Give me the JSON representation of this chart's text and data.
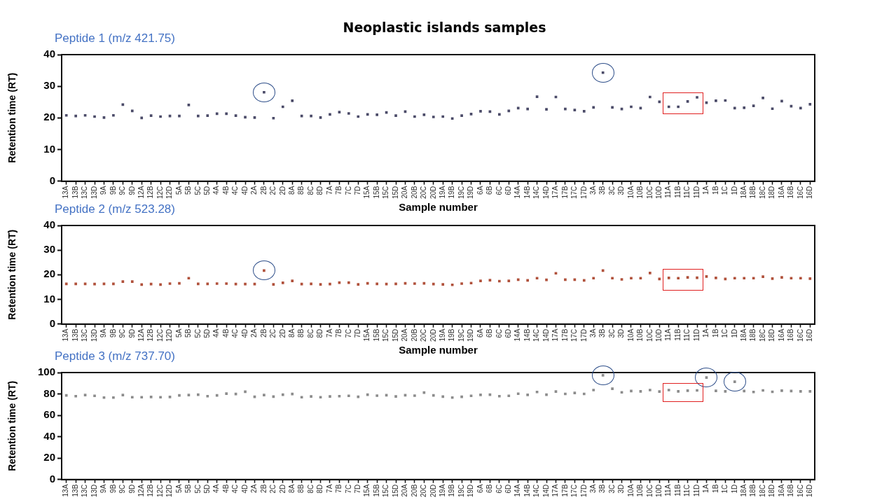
{
  "chart_data": [
    {
      "type": "scatter",
      "title": "Neoplastic islands samples",
      "subtitle": "Peptide 1 (m/z 421.75)",
      "xlabel": "Sample number",
      "ylabel": "Retention time (RT)",
      "categories": [
        "13A",
        "13B",
        "13C",
        "13D",
        "9A",
        "9B",
        "9C",
        "9D",
        "12A",
        "12B",
        "12C",
        "12D",
        "5A",
        "5B",
        "5C",
        "5D",
        "4A",
        "4B",
        "4C",
        "4D",
        "2A",
        "2B",
        "2C",
        "2D",
        "8A",
        "8B",
        "8C",
        "8D",
        "7A",
        "7B",
        "7C",
        "7D",
        "15A",
        "15B",
        "15C",
        "15D",
        "20A",
        "20B",
        "20C",
        "20D",
        "19A",
        "19B",
        "19C",
        "19D",
        "6A",
        "6B",
        "6C",
        "6D",
        "14A",
        "14B",
        "14C",
        "14D",
        "17A",
        "17B",
        "17C",
        "17D",
        "3A",
        "3B",
        "3C",
        "3D",
        "10A",
        "10B",
        "10C",
        "10D",
        "11A",
        "11B",
        "11C",
        "11D",
        "1A",
        "1B",
        "1C",
        "1D",
        "18A",
        "18B",
        "18C",
        "18D",
        "16A",
        "16B",
        "16C",
        "16D"
      ],
      "values": [
        20.8,
        20.6,
        20.8,
        20.4,
        20.1,
        20.8,
        24.2,
        22.2,
        20.0,
        20.7,
        20.4,
        20.6,
        20.6,
        24.1,
        20.6,
        20.7,
        21.3,
        21.3,
        20.7,
        20.2,
        20.1,
        28.1,
        19.9,
        23.5,
        25.4,
        20.6,
        20.6,
        20.1,
        21.1,
        21.8,
        21.4,
        20.4,
        21.1,
        21.0,
        21.7,
        20.7,
        22.0,
        20.4,
        21.0,
        20.3,
        20.4,
        19.8,
        20.7,
        21.2,
        22.1,
        22.0,
        21.1,
        22.2,
        23.1,
        22.8,
        26.7,
        22.7,
        26.6,
        22.8,
        22.5,
        22.1,
        23.3,
        34.3,
        23.3,
        22.8,
        23.5,
        23.1,
        26.6,
        25.1,
        23.5,
        23.5,
        25.2,
        26.5,
        24.8,
        25.4,
        25.5,
        23.1,
        23.2,
        23.8,
        26.3,
        22.9,
        25.3,
        23.7,
        23.1,
        24.3
      ],
      "color": "#4b4b68",
      "marker": "square",
      "ylim": [
        0,
        40
      ],
      "yticks": [
        0,
        10,
        20,
        30,
        40
      ],
      "grid": false,
      "legend": false
    },
    {
      "type": "scatter",
      "title": "Peptide 2 (m/z 523.28)",
      "xlabel": "Sample number",
      "ylabel": "Retention time (RT)",
      "categories": [
        "13A",
        "13B",
        "13C",
        "13D",
        "9A",
        "9B",
        "9C",
        "9D",
        "12A",
        "12B",
        "12C",
        "12D",
        "5A",
        "5B",
        "5C",
        "5D",
        "4A",
        "4B",
        "4C",
        "4D",
        "2A",
        "2B",
        "2C",
        "2D",
        "8A",
        "8B",
        "8C",
        "8D",
        "7A",
        "7B",
        "7C",
        "7D",
        "15A",
        "15B",
        "15C",
        "15D",
        "20A",
        "20B",
        "20C",
        "20D",
        "19A",
        "19B",
        "19C",
        "19D",
        "6A",
        "6B",
        "6C",
        "6D",
        "14A",
        "14B",
        "14C",
        "14D",
        "17A",
        "17B",
        "17C",
        "17D",
        "3A",
        "3B",
        "3C",
        "3D",
        "10A",
        "10B",
        "10C",
        "10D",
        "11A",
        "11B",
        "11C",
        "11D",
        "1A",
        "1B",
        "1C",
        "1D",
        "18A",
        "18B",
        "18C",
        "18D",
        "16A",
        "16B",
        "16C",
        "16D"
      ],
      "values": [
        16.3,
        16.3,
        16.3,
        16.2,
        16.3,
        16.3,
        17.2,
        17.2,
        16.0,
        16.2,
        16.0,
        16.4,
        16.5,
        18.6,
        16.3,
        16.3,
        16.4,
        16.4,
        16.2,
        16.2,
        16.2,
        21.7,
        16.1,
        16.7,
        17.5,
        16.2,
        16.3,
        16.1,
        16.2,
        16.8,
        16.8,
        16.1,
        16.5,
        16.3,
        16.2,
        16.3,
        16.5,
        16.4,
        16.5,
        16.2,
        16.1,
        15.9,
        16.4,
        16.6,
        17.5,
        17.8,
        17.4,
        17.5,
        18.0,
        17.7,
        18.6,
        17.9,
        20.6,
        18.0,
        18.0,
        17.7,
        18.6,
        21.7,
        18.6,
        18.1,
        18.6,
        18.6,
        20.7,
        18.3,
        18.7,
        18.6,
        18.9,
        18.8,
        19.3,
        18.7,
        18.3,
        18.6,
        18.6,
        18.6,
        19.2,
        18.4,
        18.9,
        18.6,
        18.6,
        18.4
      ],
      "color": "#b0513b",
      "marker": "square",
      "ylim": [
        0,
        40
      ],
      "yticks": [
        0,
        10,
        20,
        30,
        40
      ],
      "grid": false,
      "legend": false
    },
    {
      "type": "scatter",
      "title": "Peptide 3 (m/z 737.70)",
      "ylabel": "Retention time (RT)",
      "categories": [
        "13A",
        "13B",
        "13C",
        "13D",
        "9A",
        "9B",
        "9C",
        "9D",
        "12A",
        "12B",
        "12C",
        "12D",
        "5A",
        "5B",
        "5C",
        "5D",
        "4A",
        "4B",
        "4C",
        "4D",
        "2A",
        "2B",
        "2C",
        "2D",
        "8A",
        "8B",
        "8C",
        "8D",
        "7A",
        "7B",
        "7C",
        "7D",
        "15A",
        "15B",
        "15C",
        "15D",
        "20A",
        "20B",
        "20C",
        "20D",
        "19A",
        "19B",
        "19C",
        "19D",
        "6A",
        "6B",
        "6C",
        "6D",
        "14A",
        "14B",
        "14C",
        "14D",
        "17A",
        "17B",
        "17C",
        "17D",
        "3A",
        "3B",
        "3C",
        "3D",
        "10A",
        "10B",
        "10C",
        "10D",
        "11A",
        "11B",
        "11C",
        "11D",
        "1A",
        "1B",
        "1C",
        "1D",
        "18A",
        "18B",
        "18C",
        "18D",
        "16A",
        "16B",
        "16C",
        "16D"
      ],
      "values": [
        78.6,
        77.9,
        79.0,
        78.2,
        76.6,
        76.6,
        79.0,
        76.9,
        76.9,
        77.1,
        76.9,
        77.1,
        78.6,
        79.0,
        79.3,
        77.9,
        78.6,
        80.3,
        79.9,
        82.1,
        77.3,
        79.0,
        77.5,
        79.3,
        79.9,
        76.9,
        77.7,
        76.9,
        77.7,
        77.9,
        78.2,
        77.3,
        79.3,
        78.4,
        78.8,
        77.7,
        78.8,
        78.4,
        81.2,
        78.6,
        77.5,
        76.6,
        77.3,
        78.2,
        79.1,
        79.3,
        77.9,
        78.2,
        80.2,
        79.1,
        81.8,
        79.3,
        82.2,
        80.0,
        80.9,
        80.0,
        83.6,
        97.5,
        84.9,
        81.5,
        82.7,
        82.4,
        83.6,
        82.2,
        83.6,
        82.4,
        83.1,
        83.3,
        95.3,
        82.9,
        82.4,
        91.4,
        82.7,
        81.8,
        83.3,
        82.0,
        83.1,
        82.7,
        82.4,
        82.4
      ],
      "color": "#8c8c8c",
      "marker": "square",
      "ylim": [
        0,
        100
      ],
      "yticks": [
        0,
        20,
        40,
        60,
        80,
        100
      ],
      "grid": false,
      "legend": false
    }
  ]
}
